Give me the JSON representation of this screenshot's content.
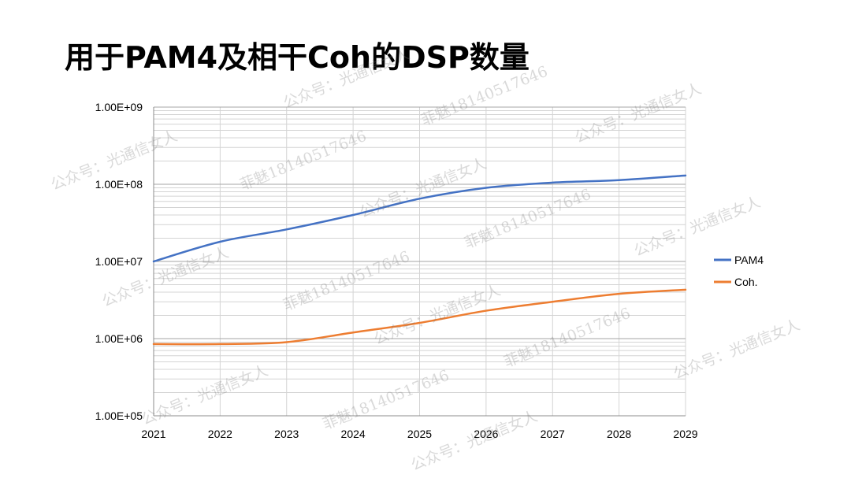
{
  "page": {
    "title": "用于PAM4及相干Coh的DSP数量"
  },
  "watermarks": {
    "account": "公众号：光通信女人",
    "contact": "菲魅18140517646"
  },
  "chart_data": {
    "type": "line",
    "title": "",
    "xlabel": "",
    "ylabel": "",
    "y_scale": "log",
    "ylim": [
      100000,
      1000000000
    ],
    "y_tick_values": [
      100000,
      1000000,
      10000000,
      100000000,
      1000000000
    ],
    "y_tick_labels": [
      "1.00E+05",
      "1.00E+06",
      "1.00E+07",
      "1.00E+08",
      "1.00E+09"
    ],
    "x": [
      "2021",
      "2022",
      "2023",
      "2024",
      "2025",
      "2026",
      "2027",
      "2028",
      "2029"
    ],
    "grid": true,
    "legend_position": "right",
    "series": [
      {
        "name": "PAM4",
        "color": "#4472C4",
        "values": [
          10000000,
          18000000,
          26000000,
          40000000,
          65000000,
          90000000,
          105000000,
          113000000,
          130000000
        ]
      },
      {
        "name": "Coh.",
        "color": "#ED7D31",
        "values": [
          850000,
          850000,
          900000,
          1200000,
          1600000,
          2300000,
          3000000,
          3800000,
          4300000
        ]
      }
    ]
  }
}
